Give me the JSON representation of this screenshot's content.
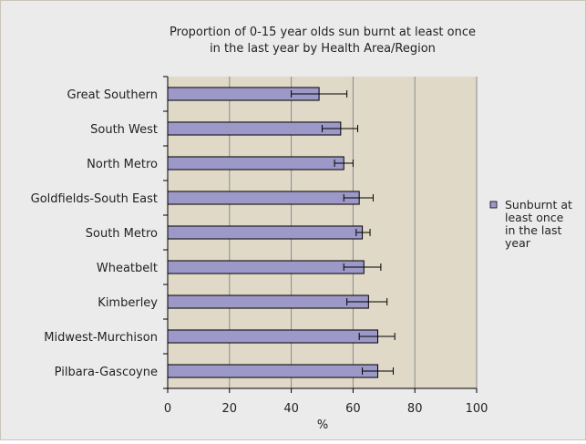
{
  "chart_data": {
    "type": "bar",
    "orientation": "horizontal",
    "title_lines": [
      "Proportion of 0-15 year olds sun burnt at least once",
      "in the last year by Health Area/Region"
    ],
    "xlabel": "%",
    "ylabel": "",
    "xlim": [
      0,
      100
    ],
    "x_ticks": [
      "0",
      "20",
      "40",
      "60",
      "80",
      "100"
    ],
    "grid": "vertical major gridlines",
    "plot_background": "#e0d9c8",
    "categories": [
      "Great Southern",
      "South West",
      "North Metro",
      "Goldfields-South East",
      "South Metro",
      "Wheatbelt",
      "Kimberley",
      "Midwest-Murchison",
      "Pilbara-Gascoyne"
    ],
    "series": [
      {
        "name": "Sunburnt at least once in the last year",
        "color": "#9c98c8",
        "values": [
          49,
          56,
          57,
          62,
          63,
          63.5,
          65,
          68,
          68
        ],
        "error_low": [
          40,
          50,
          54,
          57,
          61,
          57,
          58,
          62,
          63
        ],
        "error_high": [
          58,
          61.5,
          60,
          66.5,
          65.5,
          69,
          71,
          73.5,
          73
        ]
      }
    ],
    "legend_position": "right",
    "legend_lines": [
      "Sunburnt at",
      "least once",
      "in the last",
      "year"
    ]
  }
}
